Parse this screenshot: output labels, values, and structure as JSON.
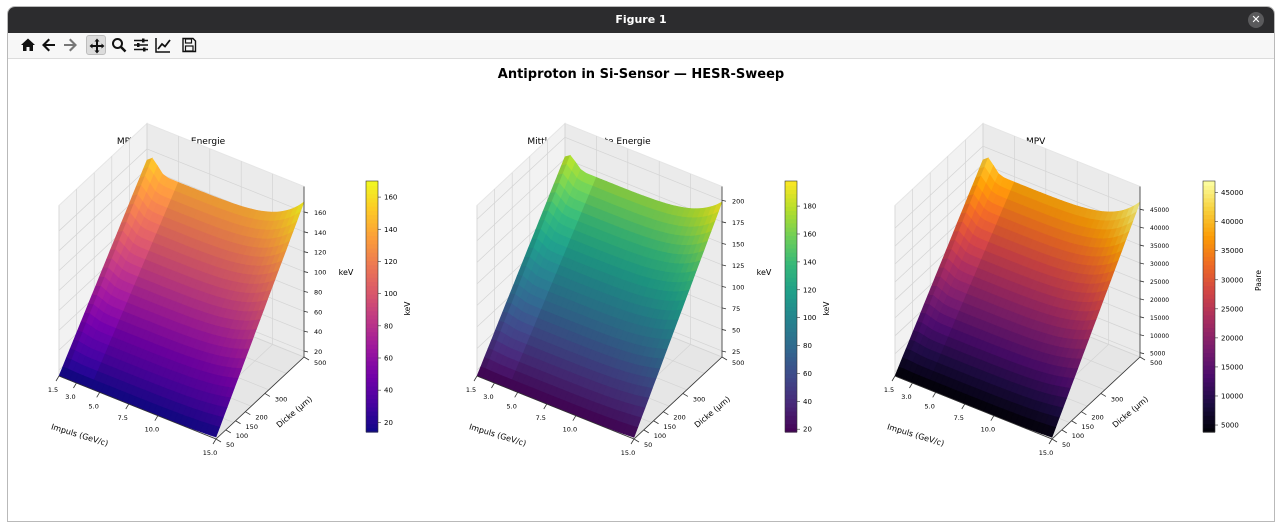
{
  "window": {
    "title": "Figure 1"
  },
  "toolbar": {
    "buttons": [
      {
        "icon": "home-icon",
        "active": false
      },
      {
        "icon": "back-arrow-icon",
        "active": false
      },
      {
        "icon": "forward-arrow-icon",
        "active": false
      },
      {
        "icon": "pan-icon",
        "active": true
      },
      {
        "icon": "zoom-icon",
        "active": false
      },
      {
        "icon": "configure-subplots-icon",
        "active": false
      },
      {
        "icon": "edit-axis-icon",
        "active": false
      },
      {
        "icon": "save-icon",
        "active": false
      }
    ]
  },
  "figure": {
    "suptitle": "Antiproton in Si-Sensor — HESR-Sweep"
  },
  "chart_data": [
    {
      "type": "surface",
      "title": "MPV deponierte Energie",
      "xlabel": "Impuls (GeV/c)",
      "ylabel": "Dicke (µm)",
      "zlabel": "keV",
      "colorbar_label": "keV",
      "colormap": "plasma",
      "x_ticks": [
        "1.5",
        "3.0",
        "5.0",
        "7.5",
        "10.0",
        "15.0"
      ],
      "y_ticks": [
        "50",
        "100",
        "150",
        "200",
        "300",
        "500"
      ],
      "z_ticks": [
        "20",
        "40",
        "60",
        "80",
        "100",
        "120",
        "140",
        "160"
      ],
      "colorbar_ticks": [
        "20",
        "40",
        "60",
        "80",
        "100",
        "120",
        "140",
        "160"
      ],
      "x_range": [
        1.5,
        15.0
      ],
      "y_range": [
        50,
        500
      ],
      "z_range": [
        14,
        170
      ],
      "corner_values": {
        "low_p_thin": 16,
        "high_p_thin": 14,
        "low_p_thick": 170,
        "high_p_thick": 139
      }
    },
    {
      "type": "surface",
      "title": "Mittlere deponierte Energie",
      "xlabel": "Impuls (GeV/c)",
      "ylabel": "Dicke (µm)",
      "zlabel": "keV",
      "colorbar_label": "keV",
      "colormap": "viridis",
      "x_ticks": [
        "1.5",
        "3.0",
        "5.0",
        "7.5",
        "10.0",
        "15.0"
      ],
      "y_ticks": [
        "50",
        "100",
        "150",
        "200",
        "300",
        "500"
      ],
      "z_ticks": [
        "25",
        "50",
        "75",
        "100",
        "125",
        "150",
        "175",
        "200"
      ],
      "colorbar_ticks": [
        "20",
        "40",
        "60",
        "80",
        "100",
        "120",
        "140",
        "160",
        "180"
      ],
      "x_range": [
        1.5,
        15.0
      ],
      "y_range": [
        50,
        500
      ],
      "z_range": [
        18,
        198
      ],
      "corner_values": {
        "low_p_thin": 20,
        "high_p_thin": 18,
        "low_p_thick": 198,
        "high_p_thick": 168
      }
    },
    {
      "type": "surface",
      "title": "e/h-Paare @ MPV",
      "xlabel": "Impuls (GeV/c)",
      "ylabel": "Dicke (µm)",
      "zlabel": "",
      "colorbar_label": "Paare",
      "colormap": "inferno",
      "x_ticks": [
        "1.5",
        "3.0",
        "5.0",
        "7.5",
        "10.0",
        "15.0"
      ],
      "y_ticks": [
        "50",
        "100",
        "150",
        "200",
        "300",
        "500"
      ],
      "z_ticks": [
        "5000",
        "10000",
        "15000",
        "20000",
        "25000",
        "30000",
        "35000",
        "40000",
        "45000"
      ],
      "colorbar_ticks": [
        "5000",
        "10000",
        "15000",
        "20000",
        "25000",
        "30000",
        "35000",
        "40000",
        "45000"
      ],
      "x_range": [
        1.5,
        15.0
      ],
      "y_range": [
        50,
        500
      ],
      "z_range": [
        3800,
        47000
      ],
      "corner_values": {
        "low_p_thin": 4300,
        "high_p_thin": 3800,
        "low_p_thick": 47000,
        "high_p_thick": 38500
      }
    }
  ]
}
